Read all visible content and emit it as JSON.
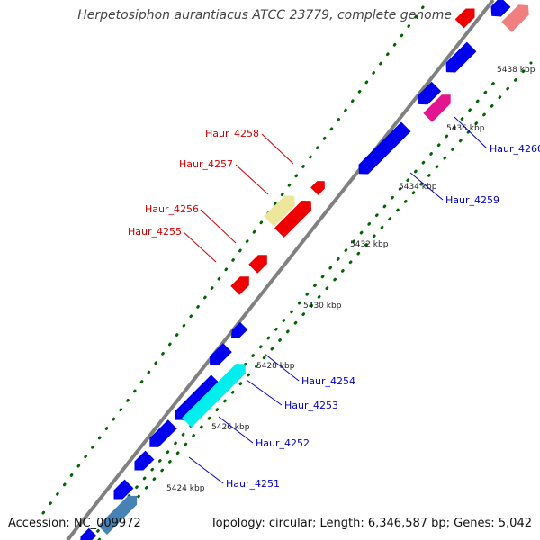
{
  "title": "Herpetosiphon aurantiacus ATCC 23779, complete genome",
  "footer": {
    "accession": "Accession: NC_009972",
    "topology": "Topology: circular; Length: 6,346,587 bp; Genes: 5,042"
  },
  "scale_ticks": [
    "5424 kbp",
    "5426 kbp",
    "5428 kbp",
    "5430 kbp",
    "5432 kbp",
    "5434 kbp",
    "5436 kbp",
    "5438 kbp"
  ],
  "gene_labels": [
    {
      "text": "Haur_4258",
      "color": "#cc0000"
    },
    {
      "text": "Haur_4257",
      "color": "#cc0000"
    },
    {
      "text": "Haur_4256",
      "color": "#cc0000"
    },
    {
      "text": "Haur_4255",
      "color": "#cc0000"
    },
    {
      "text": "Haur_4260",
      "color": "#0000cc"
    },
    {
      "text": "Haur_4259",
      "color": "#0000cc"
    },
    {
      "text": "Haur_4254",
      "color": "#0000cc"
    },
    {
      "text": "Haur_4253",
      "color": "#0000cc"
    },
    {
      "text": "Haur_4252",
      "color": "#0000cc"
    },
    {
      "text": "Haur_4251",
      "color": "#0000cc"
    }
  ],
  "colors": {
    "blue": "#0000ee",
    "red": "#ee0000",
    "khaki": "#eee69a",
    "cyan": "#00eeee",
    "magenta": "#e2148f",
    "salmon": "#f08080",
    "steel": "#4682b4",
    "backbone": "#808080",
    "dots": "#006400"
  }
}
